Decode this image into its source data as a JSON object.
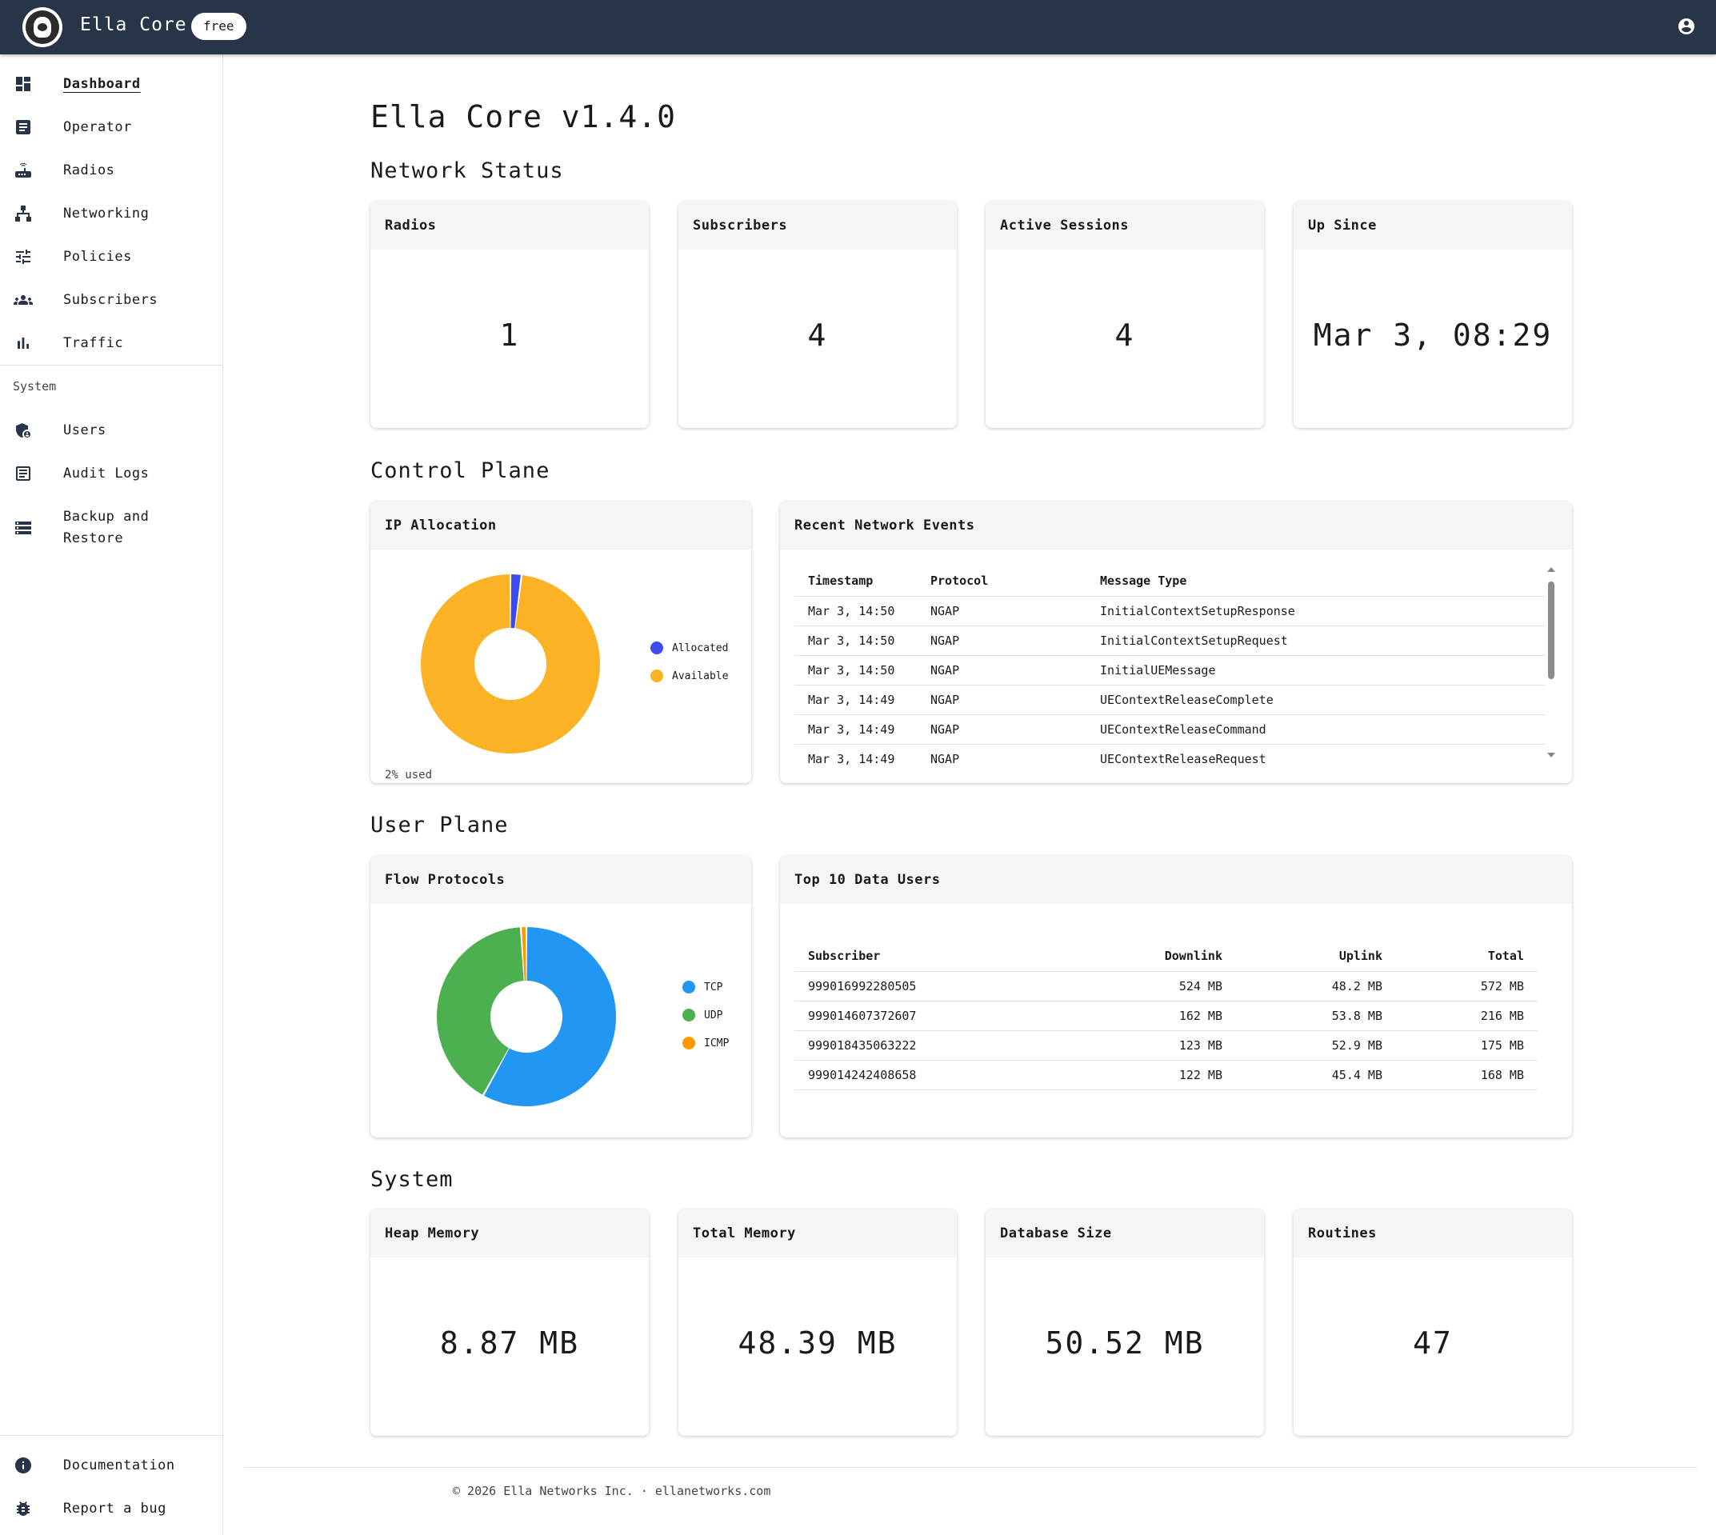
{
  "header": {
    "app_title": "Ella Core",
    "badge": "free"
  },
  "sidebar": {
    "items": [
      {
        "label": "Dashboard",
        "icon": "dashboard-icon"
      },
      {
        "label": "Operator",
        "icon": "document-icon"
      },
      {
        "label": "Radios",
        "icon": "router-icon"
      },
      {
        "label": "Networking",
        "icon": "network-icon"
      },
      {
        "label": "Policies",
        "icon": "sliders-icon"
      },
      {
        "label": "Subscribers",
        "icon": "people-icon"
      },
      {
        "label": "Traffic",
        "icon": "bar-chart-icon"
      }
    ],
    "system_label": "System",
    "system_items": [
      {
        "label": "Users",
        "icon": "admin-shield-icon"
      },
      {
        "label": "Audit Logs",
        "icon": "audit-log-icon"
      },
      {
        "label": "Backup and Restore",
        "icon": "storage-icon"
      }
    ],
    "bottom_items": [
      {
        "label": "Documentation",
        "icon": "info-icon"
      },
      {
        "label": "Report a bug",
        "icon": "bug-icon"
      }
    ]
  },
  "main": {
    "title": "Ella Core v1.4.0",
    "network_status": {
      "title": "Network Status",
      "cards": [
        {
          "label": "Radios",
          "value": "1"
        },
        {
          "label": "Subscribers",
          "value": "4"
        },
        {
          "label": "Active Sessions",
          "value": "4"
        },
        {
          "label": "Up Since",
          "value": "Mar 3, 08:29"
        }
      ]
    },
    "control_plane": {
      "title": "Control Plane",
      "ip_allocation": {
        "label": "IP Allocation",
        "used_text": "2% used",
        "legend": [
          "Allocated",
          "Available"
        ]
      },
      "events": {
        "label": "Recent Network Events",
        "columns": [
          "Timestamp",
          "Protocol",
          "Message Type"
        ],
        "rows": [
          [
            "Mar 3, 14:50",
            "NGAP",
            "InitialContextSetupResponse"
          ],
          [
            "Mar 3, 14:50",
            "NGAP",
            "InitialContextSetupRequest"
          ],
          [
            "Mar 3, 14:50",
            "NGAP",
            "InitialUEMessage"
          ],
          [
            "Mar 3, 14:49",
            "NGAP",
            "UEContextReleaseComplete"
          ],
          [
            "Mar 3, 14:49",
            "NGAP",
            "UEContextReleaseCommand"
          ],
          [
            "Mar 3, 14:49",
            "NGAP",
            "UEContextReleaseRequest"
          ]
        ]
      }
    },
    "user_plane": {
      "title": "User Plane",
      "flow_protocols": {
        "label": "Flow Protocols",
        "legend": [
          "TCP",
          "UDP",
          "ICMP"
        ]
      },
      "top_users": {
        "label": "Top 10 Data Users",
        "columns": [
          "Subscriber",
          "Downlink",
          "Uplink",
          "Total"
        ],
        "rows": [
          [
            "999016992280505",
            "524 MB",
            "48.2 MB",
            "572 MB"
          ],
          [
            "999014607372607",
            "162 MB",
            "53.8 MB",
            "216 MB"
          ],
          [
            "999018435063222",
            "123 MB",
            "52.9 MB",
            "175 MB"
          ],
          [
            "999014242408658",
            "122 MB",
            "45.4 MB",
            "168 MB"
          ]
        ]
      }
    },
    "system": {
      "title": "System",
      "cards": [
        {
          "label": "Heap Memory",
          "value": "8.87 MB"
        },
        {
          "label": "Total Memory",
          "value": "48.39 MB"
        },
        {
          "label": "Database Size",
          "value": "50.52 MB"
        },
        {
          "label": "Routines",
          "value": "47"
        }
      ]
    }
  },
  "footer": {
    "text": "© 2026 Ella Networks Inc. · ellanetworks.com"
  },
  "chart_data": [
    {
      "type": "pie",
      "title": "IP Allocation",
      "categories": [
        "Allocated",
        "Available"
      ],
      "values": [
        2,
        98
      ],
      "colors": [
        "#3b4bf0",
        "#fbb325"
      ]
    },
    {
      "type": "pie",
      "title": "Flow Protocols",
      "categories": [
        "TCP",
        "UDP",
        "ICMP"
      ],
      "values": [
        58,
        41,
        1
      ],
      "colors": [
        "#2196f3",
        "#4caf50",
        "#ff9800"
      ]
    }
  ]
}
